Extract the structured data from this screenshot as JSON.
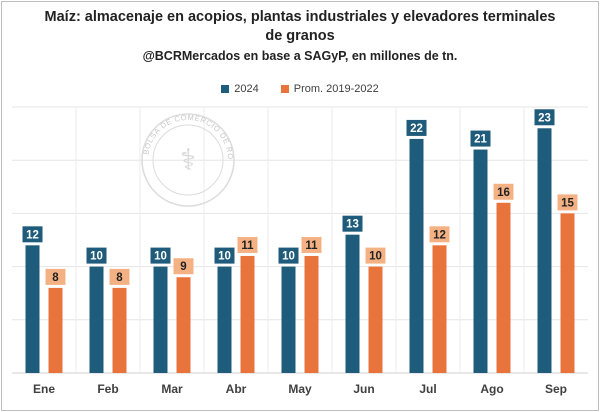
{
  "chart_data": {
    "type": "bar",
    "title_line1": "Maíz: almacenaje en acopios, plantas industriales y elevadores terminales",
    "title_line2": "de granos",
    "subtitle": "@BCRMercados en base a SAGyP, en millones de tn.",
    "categories": [
      "Ene",
      "Feb",
      "Mar",
      "Abr",
      "May",
      "Jun",
      "Jul",
      "Ago",
      "Sep"
    ],
    "series": [
      {
        "name": "2024",
        "color": "#1f5b7a",
        "label_bg": "#1f5b7a",
        "label_color": "#ffffff",
        "values": [
          12,
          10,
          10,
          10,
          10,
          13,
          22,
          21,
          23
        ]
      },
      {
        "name": "Prom. 2019-2022",
        "color": "#e8743b",
        "label_bg": "#f4b183",
        "label_color": "#222222",
        "values": [
          8,
          8,
          9,
          11,
          11,
          10,
          12,
          16,
          15
        ]
      }
    ],
    "ylim": [
      0,
      25
    ],
    "grid": true,
    "legend_position": "top-center",
    "watermark_text": "BOLSA DE COMERCIO DE ROSARIO"
  }
}
